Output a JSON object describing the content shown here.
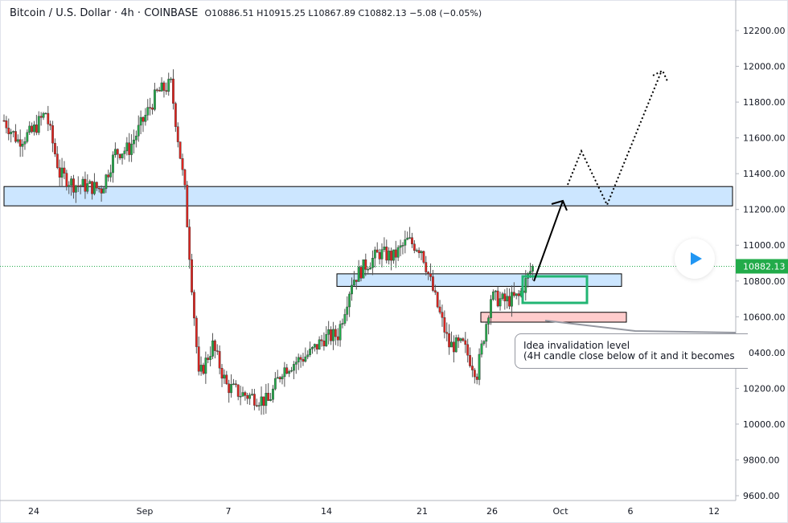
{
  "header": {
    "symbol": "Bitcoin / U.S. Dollar · 4h · COINBASE",
    "ohlc": "O10886.51 H10915.25 L10867.89 C10882.13 −5.08 (−0.05%)"
  },
  "annotation": {
    "line1": "Idea invalidation level",
    "line2": "(4H candle close below of it and it becomes"
  },
  "play_button": {
    "icon": "play-icon"
  },
  "colors": {
    "up": "#22ab4a",
    "down": "#e0241f",
    "zone": "#cce6ff",
    "invalidation": "#ffcccc",
    "target_box": "#22b573",
    "last_price": "#22ab4a"
  },
  "chart_data": {
    "type": "candlestick",
    "timeframe": "4h",
    "ylim": [
      9600,
      12300
    ],
    "y_ticks": [
      9600,
      9800,
      10000,
      10200,
      10400,
      10600,
      10800,
      11000,
      11200,
      11400,
      11600,
      11800,
      12000,
      12200
    ],
    "y_tick_labels": [
      "9600.00",
      "9800.00",
      "10000.00",
      "10200.00",
      "10400.00",
      "10600.00",
      "10800.00",
      "11000.00",
      "11200.00",
      "11400.00",
      "11600.00",
      "11800.00",
      "12000.00",
      "12200.00"
    ],
    "x_tick_labels": [
      "24",
      "Sep",
      "7",
      "14",
      "21",
      "26",
      "Oct",
      "6",
      "12"
    ],
    "last_price": 10882.13,
    "last_price_label": "10882.13",
    "approx_daily_closes": [
      [
        "Aug 21",
        11697
      ],
      [
        "Aug 22",
        11585
      ],
      [
        "Aug 23",
        11630
      ],
      [
        "Aug 24",
        11742
      ],
      [
        "Aug 25",
        11400
      ],
      [
        "Aug 26",
        11340
      ],
      [
        "Aug 27",
        11330
      ],
      [
        "Aug 28",
        11315
      ],
      [
        "Aug 29",
        11517
      ],
      [
        "Aug 30",
        11540
      ],
      [
        "Aug 31",
        11697
      ],
      [
        "Sep 1",
        11850
      ],
      [
        "Sep 2",
        11900
      ],
      [
        "Sep 3",
        11300
      ],
      [
        "Sep 4",
        10260
      ],
      [
        "Sep 5",
        10440
      ],
      [
        "Sep 6",
        10215
      ],
      [
        "Sep 7",
        10170
      ],
      [
        "Sep 8",
        10150
      ],
      [
        "Sep 9",
        10125
      ],
      [
        "Sep 10",
        10305
      ],
      [
        "Sep 11",
        10350
      ],
      [
        "Sep 12",
        10395
      ],
      [
        "Sep 13",
        10480
      ],
      [
        "Sep 14",
        10500
      ],
      [
        "Sep 15",
        10800
      ],
      [
        "Sep 16",
        10889
      ],
      [
        "Sep 17",
        10956
      ],
      [
        "Sep 18",
        10934
      ],
      [
        "Sep 19",
        11024
      ],
      [
        "Sep 20",
        10980
      ],
      [
        "Sep 21",
        10700
      ],
      [
        "Sep 22",
        10440
      ],
      [
        "Sep 23",
        10440
      ],
      [
        "Sep 24",
        10283
      ],
      [
        "Sep 25",
        10710
      ],
      [
        "Sep 26",
        10687
      ],
      [
        "Sep 27",
        10710
      ],
      [
        "Sep 28",
        10882
      ]
    ],
    "zones": [
      {
        "kind": "resistance",
        "from": 11220,
        "to": 11328
      },
      {
        "kind": "support",
        "from": 10770,
        "to": 10840
      },
      {
        "kind": "invalidation",
        "from": 10570,
        "to": 10625
      }
    ]
  }
}
